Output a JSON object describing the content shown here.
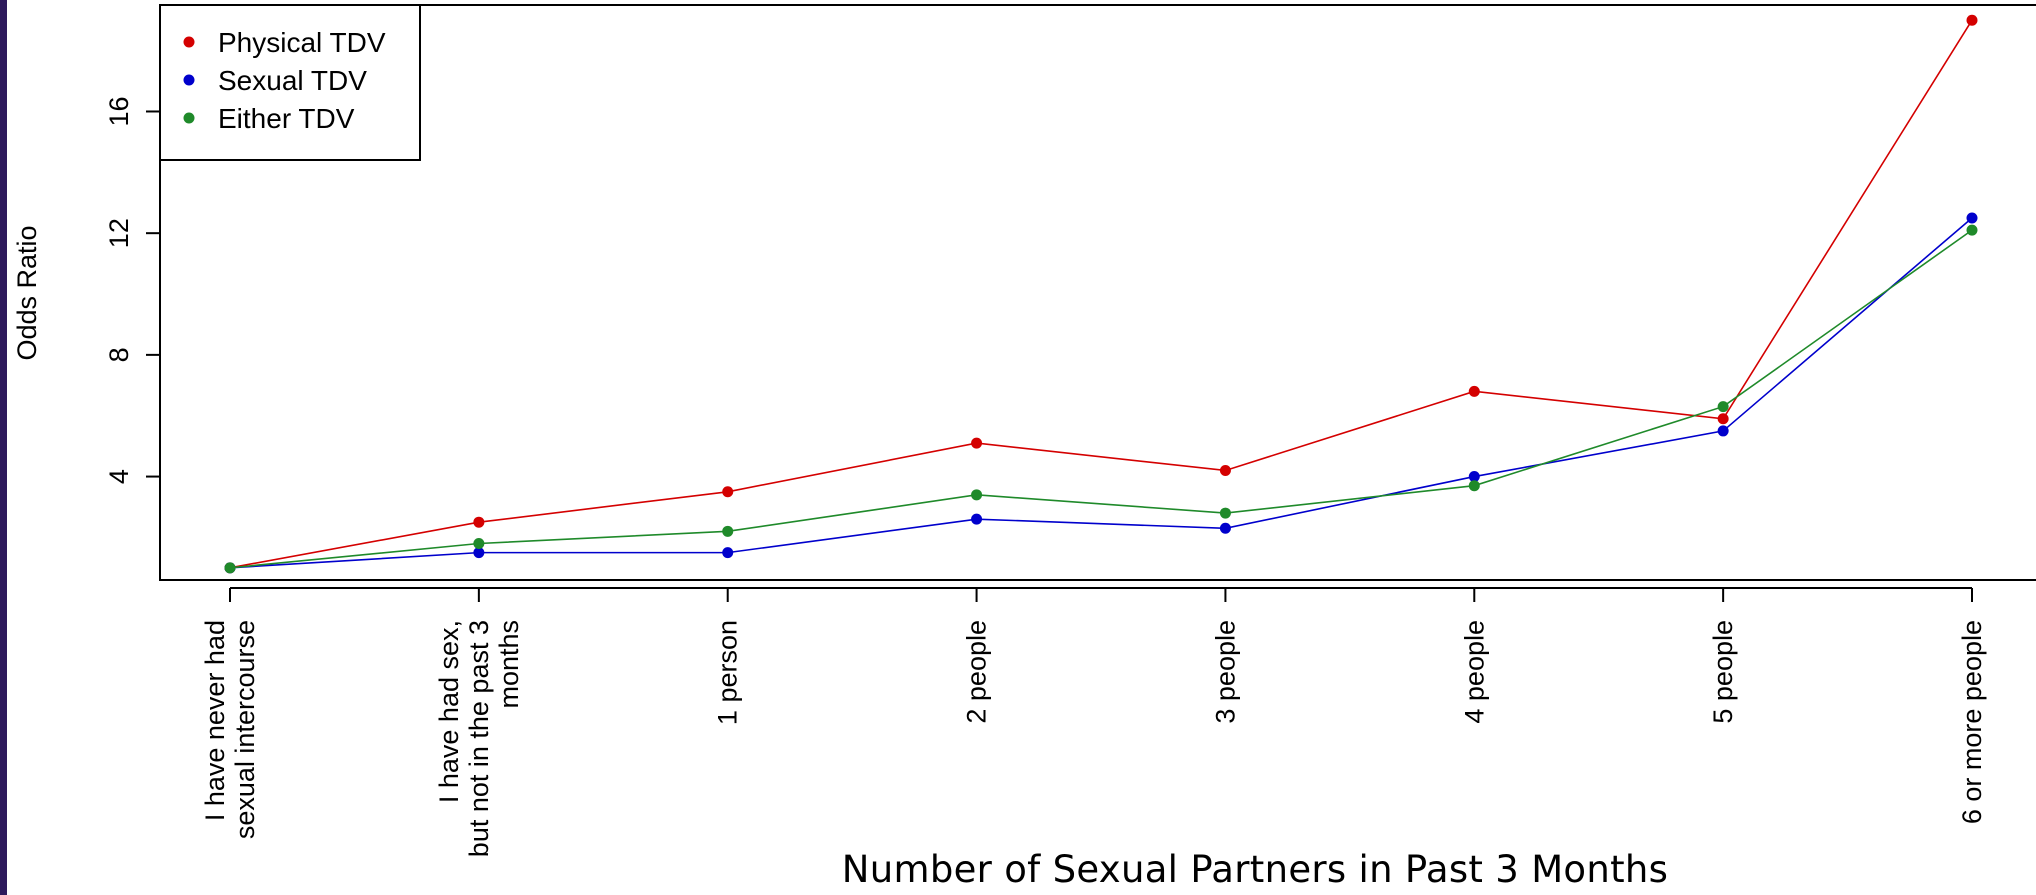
{
  "chart_data": {
    "type": "line",
    "xlabel": "Number of Sexual Partners in Past 3 Months",
    "ylabel": "Odds Ratio",
    "categories": [
      [
        "I have never had",
        "sexual intercourse"
      ],
      [
        "I have had sex,",
        "but not in the past 3",
        "months"
      ],
      [
        "1 person"
      ],
      [
        "2 people"
      ],
      [
        "3 people"
      ],
      [
        "4 people"
      ],
      [
        "5 people"
      ],
      [
        "6 or more people"
      ]
    ],
    "y_ticks": [
      4,
      8,
      12,
      16
    ],
    "ylim": [
      0.6,
      19.5
    ],
    "grid": false,
    "legend_position": "top-left",
    "series": [
      {
        "name": "Physical TDV",
        "color": "#d40000",
        "values": [
          1.0,
          2.5,
          3.5,
          5.1,
          4.2,
          6.8,
          5.9,
          19.0
        ]
      },
      {
        "name": "Sexual TDV",
        "color": "#0000cc",
        "values": [
          1.0,
          1.5,
          1.5,
          2.6,
          2.3,
          4.0,
          5.5,
          12.5
        ]
      },
      {
        "name": "Either TDV",
        "color": "#1f8a2a",
        "values": [
          1.0,
          1.8,
          2.2,
          3.4,
          2.8,
          3.7,
          6.3,
          12.1
        ]
      }
    ]
  }
}
